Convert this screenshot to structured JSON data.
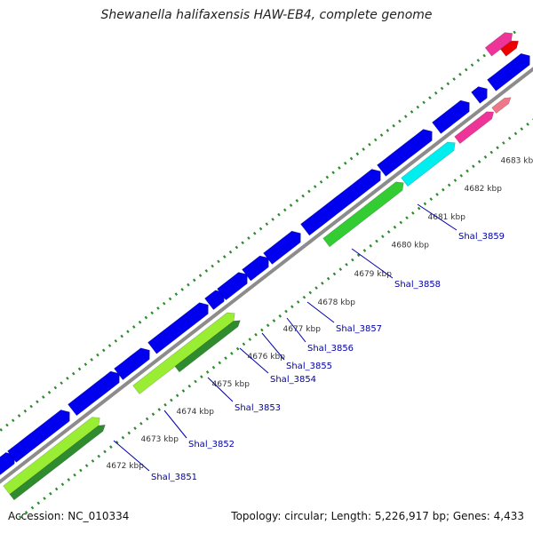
{
  "title": "Shewanella halifaxensis HAW-EB4, complete genome",
  "footer": {
    "accession_label": "Accession:",
    "accession": "NC_010334",
    "topology_label": "Topology:",
    "topology": "circular",
    "length_label": "Length:",
    "length": "5,226,917 bp",
    "genes_label": "Genes:",
    "genes": "4,433"
  },
  "colors": {
    "backbone": "#8c8c8c",
    "tick_major": "#2e8b2e",
    "tick_minor": "#3aa03a",
    "cds": "#0000ee",
    "label": "#0000aa",
    "scale_text": "#333333"
  },
  "scale_labels": [
    {
      "kbp": 4672,
      "text": "4672 kbp"
    },
    {
      "kbp": 4673,
      "text": "4673 kbp"
    },
    {
      "kbp": 4674,
      "text": "4674 kbp"
    },
    {
      "kbp": 4675,
      "text": "4675 kbp"
    },
    {
      "kbp": 4676,
      "text": "4676 kbp"
    },
    {
      "kbp": 4677,
      "text": "4677 kbp"
    },
    {
      "kbp": 4678,
      "text": "4678 kbp"
    },
    {
      "kbp": 4679,
      "text": "4679 kbp"
    },
    {
      "kbp": 4680,
      "text": "4680 kbp"
    },
    {
      "kbp": 4681,
      "text": "4681 kbp"
    },
    {
      "kbp": 4682,
      "text": "4682 kbp"
    },
    {
      "kbp": 4683,
      "text": "4683 kbp"
    }
  ],
  "gene_labels": [
    {
      "name": "Shal_3851"
    },
    {
      "name": "Shal_3852"
    },
    {
      "name": "Shal_3853"
    },
    {
      "name": "Shal_3854"
    },
    {
      "name": "Shal_3855"
    },
    {
      "name": "Shal_3856"
    },
    {
      "name": "Shal_3857"
    },
    {
      "name": "Shal_3858"
    },
    {
      "name": "Shal_3859"
    }
  ]
}
